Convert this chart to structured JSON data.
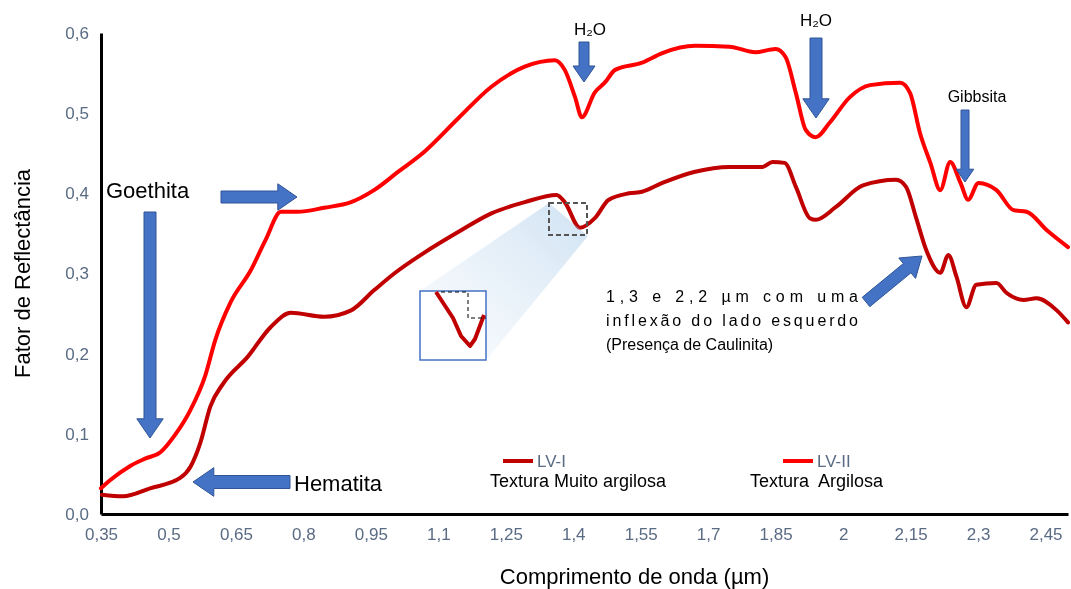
{
  "chart_data": {
    "type": "line",
    "xlabel": "Comprimento de onda (µm)",
    "ylabel": "Fator de Reflectância",
    "xlim": [
      0.35,
      2.5
    ],
    "ylim": [
      0,
      0.6
    ],
    "xticks": [
      {
        "value": 0.35,
        "label": "0,35"
      },
      {
        "value": 0.5,
        "label": "0,5"
      },
      {
        "value": 0.65,
        "label": "0,65"
      },
      {
        "value": 0.8,
        "label": "0,8"
      },
      {
        "value": 0.95,
        "label": "0,95"
      },
      {
        "value": 1.1,
        "label": "1,1"
      },
      {
        "value": 1.25,
        "label": "1,25"
      },
      {
        "value": 1.4,
        "label": "1,4"
      },
      {
        "value": 1.55,
        "label": "1,55"
      },
      {
        "value": 1.7,
        "label": "1,7"
      },
      {
        "value": 1.85,
        "label": "1,85"
      },
      {
        "value": 2,
        "label": "2"
      },
      {
        "value": 2.15,
        "label": "2,15"
      },
      {
        "value": 2.3,
        "label": "2,3"
      },
      {
        "value": 2.45,
        "label": "2,45"
      }
    ],
    "yticks": [
      {
        "value": 0,
        "label": "0,0"
      },
      {
        "value": 0.1,
        "label": "0,1"
      },
      {
        "value": 0.2,
        "label": "0,2"
      },
      {
        "value": 0.3,
        "label": "0,3"
      },
      {
        "value": 0.4,
        "label": "0,4"
      },
      {
        "value": 0.5,
        "label": "0,5"
      },
      {
        "value": 0.6,
        "label": "0,6"
      }
    ],
    "grid": false,
    "legend": "bottom",
    "marker": "none",
    "line_style": "solid",
    "series": [
      {
        "name": "LV-I",
        "color": "#c00000",
        "x": [
          0.352,
          0.399,
          0.459,
          0.526,
          0.549,
          0.571,
          0.593,
          0.622,
          0.676,
          0.727,
          0.772,
          0.846,
          0.906,
          0.957,
          1.002,
          1.069,
          1.145,
          1.218,
          1.292,
          1.363,
          1.381,
          1.415,
          1.448,
          1.479,
          1.524,
          1.553,
          1.598,
          1.671,
          1.747,
          1.821,
          1.843,
          1.87,
          1.895,
          1.926,
          1.939,
          1.984,
          2.044,
          2.118,
          2.14,
          2.162,
          2.185,
          2.216,
          2.234,
          2.252,
          2.274,
          2.296,
          2.341,
          2.363,
          2.401,
          2.43,
          2.475,
          2.5
        ],
        "values": [
          0.024,
          0.022,
          0.032,
          0.045,
          0.059,
          0.089,
          0.134,
          0.163,
          0.196,
          0.233,
          0.251,
          0.246,
          0.254,
          0.279,
          0.3,
          0.326,
          0.352,
          0.375,
          0.389,
          0.398,
          0.389,
          0.357,
          0.369,
          0.392,
          0.4,
          0.402,
          0.413,
          0.427,
          0.433,
          0.433,
          0.439,
          0.438,
          0.408,
          0.369,
          0.367,
          0.383,
          0.41,
          0.417,
          0.408,
          0.37,
          0.329,
          0.301,
          0.323,
          0.296,
          0.258,
          0.286,
          0.288,
          0.276,
          0.267,
          0.269,
          0.254,
          0.239
        ]
      },
      {
        "name": "LV-II",
        "color": "#ff0000",
        "x": [
          0.35,
          0.37,
          0.415,
          0.448,
          0.482,
          0.515,
          0.549,
          0.582,
          0.604,
          0.638,
          0.683,
          0.716,
          0.75,
          0.787,
          0.846,
          0.906,
          0.957,
          1.011,
          1.069,
          1.145,
          1.218,
          1.292,
          1.359,
          1.381,
          1.404,
          1.419,
          1.448,
          1.47,
          1.493,
          1.553,
          1.598,
          1.671,
          1.747,
          1.805,
          1.85,
          1.872,
          1.895,
          1.917,
          1.939,
          1.97,
          2.015,
          2.06,
          2.127,
          2.149,
          2.171,
          2.194,
          2.216,
          2.238,
          2.261,
          2.278,
          2.301,
          2.341,
          2.379,
          2.408,
          2.453,
          2.5
        ],
        "values": [
          0.032,
          0.042,
          0.06,
          0.069,
          0.077,
          0.099,
          0.13,
          0.173,
          0.217,
          0.264,
          0.304,
          0.342,
          0.377,
          0.377,
          0.382,
          0.389,
          0.404,
          0.427,
          0.452,
          0.494,
          0.533,
          0.558,
          0.566,
          0.554,
          0.52,
          0.495,
          0.526,
          0.538,
          0.554,
          0.563,
          0.575,
          0.584,
          0.583,
          0.576,
          0.58,
          0.57,
          0.525,
          0.479,
          0.47,
          0.488,
          0.52,
          0.535,
          0.538,
          0.525,
          0.475,
          0.438,
          0.404,
          0.439,
          0.413,
          0.392,
          0.413,
          0.404,
          0.379,
          0.377,
          0.354,
          0.333
        ]
      }
    ],
    "annotations": [
      "Textura Muito argilosa",
      "Textura  Argilosa",
      "H₂O",
      "H₂O",
      "Gibbsita",
      "Goethita",
      "Hematita",
      "1,3 e 2,2 µm com uma inflexão do lado esquerdo (Presença de Caulinita)"
    ]
  }
}
